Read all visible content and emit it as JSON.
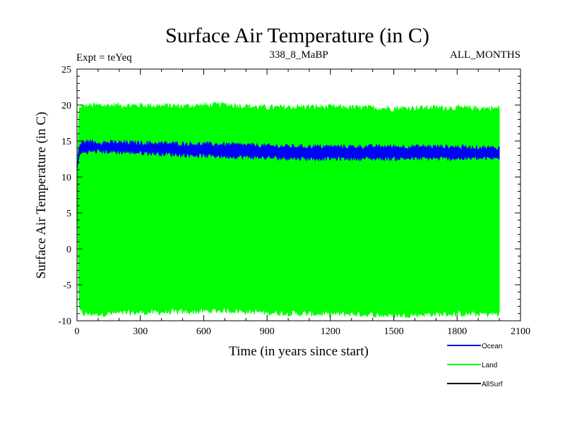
{
  "chart_data": {
    "type": "area",
    "title": "Surface Air Temperature (in C)",
    "subtitle_left": "Expt = teYeq",
    "subtitle_center": "338_8_MaBP",
    "subtitle_right": "ALL_MONTHS",
    "xlabel": "Time (in years since start)",
    "ylabel": "Surface Air Temperature (in C)",
    "xlim": [
      0,
      2100
    ],
    "ylim": [
      -10,
      25
    ],
    "x_ticks": [
      0,
      300,
      600,
      900,
      1200,
      1500,
      1800,
      2100
    ],
    "y_ticks": [
      25,
      20,
      15,
      10,
      5,
      0,
      -5,
      -10
    ],
    "x_tick_labels": [
      "0",
      "300",
      "600",
      "900",
      "1200",
      "1500",
      "1800",
      "2100"
    ],
    "y_tick_labels": [
      "25",
      "20",
      "15",
      "10",
      "5",
      "0",
      "-5",
      "-10"
    ],
    "legend_position": "bottom-right",
    "x_end": 2000,
    "series": [
      {
        "name": "Land",
        "color": "#00ff00",
        "x": [
          0,
          10,
          30,
          100,
          300,
          500,
          700,
          900,
          1100,
          1300,
          1500,
          1700,
          1900,
          2000
        ],
        "upper": [
          10,
          19.5,
          19.8,
          19.9,
          19.9,
          19.8,
          20.0,
          19.6,
          19.7,
          19.6,
          19.5,
          19.6,
          19.5,
          19.5
        ],
        "lower": [
          10,
          -8.5,
          -9.0,
          -9.0,
          -8.8,
          -8.7,
          -8.5,
          -8.8,
          -9.0,
          -9.0,
          -9.2,
          -9.0,
          -9.0,
          -9.0
        ]
      },
      {
        "name": "Ocean",
        "color": "#0000ff",
        "x": [
          0,
          10,
          30,
          100,
          300,
          500,
          700,
          900,
          1100,
          1300,
          1500,
          1700,
          1900,
          2000
        ],
        "upper": [
          11,
          14.3,
          14.9,
          14.8,
          14.7,
          14.6,
          14.5,
          14.3,
          14.2,
          14.2,
          14.2,
          14.2,
          14.1,
          14.0
        ],
        "lower": [
          11,
          13.0,
          13.5,
          13.6,
          13.4,
          13.1,
          12.9,
          12.7,
          12.6,
          12.6,
          12.6,
          12.6,
          12.6,
          12.6
        ]
      },
      {
        "name": "AllSurf",
        "color": "#000000",
        "x": [],
        "upper": [],
        "lower": []
      }
    ]
  }
}
